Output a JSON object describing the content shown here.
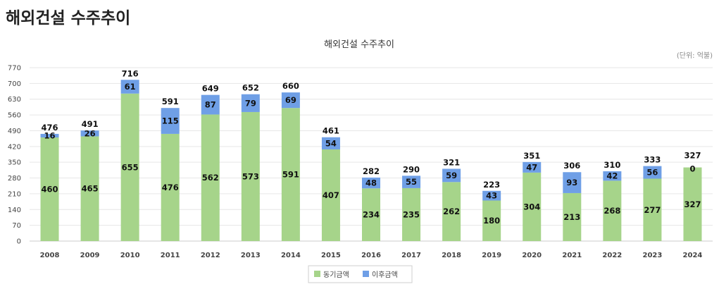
{
  "page": {
    "heading": "해외건설 수주추이"
  },
  "colors": {
    "series1": "#a6d48a",
    "series2": "#6f9fe6",
    "grid": "#e6e6e6",
    "legend_border": "#cfcfcf"
  },
  "chart_data": {
    "type": "bar",
    "stacked": true,
    "title": "해외건설 수주추이",
    "unit_label": "(단위: 억불)",
    "categories": [
      "2008",
      "2009",
      "2010",
      "2011",
      "2012",
      "2013",
      "2014",
      "2015",
      "2016",
      "2017",
      "2018",
      "2019",
      "2020",
      "2021",
      "2022",
      "2023",
      "2024"
    ],
    "series": [
      {
        "name": "동기금액",
        "values": [
          460,
          465,
          655,
          476,
          562,
          573,
          591,
          407,
          234,
          235,
          262,
          180,
          304,
          213,
          268,
          277,
          327
        ]
      },
      {
        "name": "이후금액",
        "values": [
          16,
          26,
          61,
          115,
          87,
          79,
          69,
          54,
          48,
          55,
          59,
          43,
          47,
          93,
          42,
          56,
          0
        ]
      }
    ],
    "totals": [
      476,
      491,
      716,
      591,
      649,
      652,
      660,
      461,
      282,
      290,
      321,
      223,
      351,
      306,
      310,
      333,
      327
    ],
    "yticks": [
      0,
      70,
      140,
      210,
      280,
      350,
      420,
      490,
      560,
      630,
      700,
      770
    ],
    "ylim": [
      0,
      770
    ],
    "grid": true,
    "legend_position": "bottom"
  }
}
